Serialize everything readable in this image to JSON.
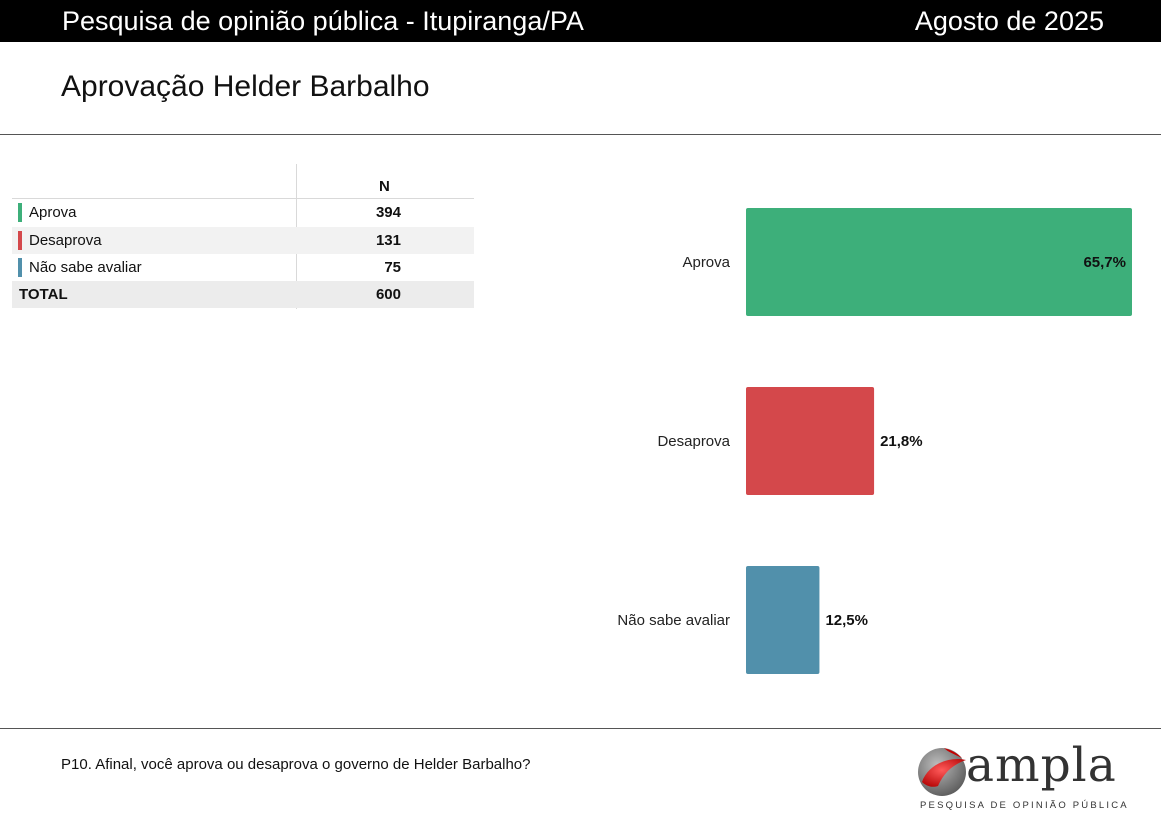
{
  "header": {
    "title": "Pesquisa de opinião pública - Itupiranga/PA",
    "date": "Agosto de 2025"
  },
  "page_title": "Aprovação Helder Barbalho",
  "table": {
    "column_header": "N",
    "rows": [
      {
        "label": "Aprova",
        "value": "394",
        "color": "#3daf7a"
      },
      {
        "label": "Desaprova",
        "value": "131",
        "color": "#d4484b"
      },
      {
        "label": "Não sabe avaliar",
        "value": "75",
        "color": "#5190ab"
      }
    ],
    "total_label": "TOTAL",
    "total_value": "600"
  },
  "chart_data": {
    "type": "bar",
    "orientation": "horizontal",
    "categories": [
      "Aprova",
      "Desaprova",
      "Não sabe avaliar"
    ],
    "values": [
      65.7,
      21.8,
      12.5
    ],
    "labels": [
      "65,7%",
      "21,8%",
      "12,5%"
    ],
    "colors": [
      "#3daf7a",
      "#d4484b",
      "#5190ab"
    ],
    "xlim": [
      0,
      65.7
    ],
    "grid": false
  },
  "footnote": "P10. Afinal, você aprova ou desaprova o governo de Helder Barbalho?",
  "logo": {
    "word": "ampla",
    "tagline": "PESQUISA DE OPINIÃO PÚBLICA",
    "icon": "ampla-logo-icon"
  }
}
